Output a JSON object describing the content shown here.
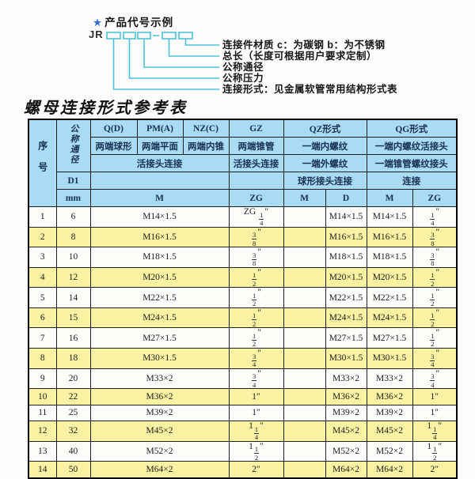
{
  "diagram": {
    "star": "★",
    "heading": "产品代号示例",
    "prefix": "JR",
    "labels": [
      "连接件材质  c：为碳钢  b：为不锈钢",
      "总长（长度可根据用户要求定制）",
      "公称通径",
      "公称压力",
      "连接形式：见金属软管常用结构形式表"
    ],
    "line_color": "#4cc2da",
    "star_color": "#2b6fc9"
  },
  "table": {
    "title": "螺母连接形式参考表",
    "colors": {
      "header_bg": "#a9dbf2",
      "row_alt_bg": "#f8f2a2",
      "header_text": "#16304e"
    },
    "header": {
      "seq": "序号",
      "dn": "公称通径",
      "d1": "D1",
      "mm": "mm",
      "types": [
        "Q(D)",
        "PM(A)",
        "NZ(C)",
        "GZ",
        "QZ形式",
        "QG形式"
      ],
      "row2": [
        "两端球形",
        "两端平面",
        "两端内锥",
        "两端锥管",
        "一端内螺纹",
        "一端内螺纹活接头"
      ],
      "row3": [
        "活接头连接",
        "活接头连接",
        "一端外螺纹",
        "一端锥管螺纹接头"
      ],
      "row4": [
        "球形接头连接",
        "连接"
      ],
      "row5": [
        "M",
        "ZG",
        "M",
        "D",
        "M",
        "ZG"
      ]
    },
    "rows": [
      [
        "1",
        "6",
        "M14×1.5",
        "ZG {1/4}″",
        "",
        "M14×1.5",
        "M14×1.5",
        "{1/4}″"
      ],
      [
        "2",
        "8",
        "M16×1.5",
        "{3/8}″",
        "",
        "M16×1.5",
        "M16×1.5",
        "{3/8}″"
      ],
      [
        "3",
        "10",
        "M18×1.5",
        "{3/8}″",
        "",
        "M18×1.5",
        "M18×1.5",
        "{3/8}″"
      ],
      [
        "4",
        "12",
        "M20×1.5",
        "{1/2}″",
        "",
        "M20×1.5",
        "M20×1.5",
        "{1/2}″"
      ],
      [
        "5",
        "14",
        "M22×1.5",
        "{1/2}″",
        "",
        "M22×1.5",
        "M22×1.5",
        "{1/2}″"
      ],
      [
        "6",
        "15",
        "M24×1.5",
        "{1/2}″",
        "",
        "M24×1.5",
        "M24×1.5",
        "{1/2}″"
      ],
      [
        "7",
        "16",
        "M27×1.5",
        "{1/2}″",
        "",
        "M27×1.5",
        "M27×1.5",
        "{1/2}″"
      ],
      [
        "8",
        "18",
        "M30×1.5",
        "{3/4}″",
        "",
        "M30×1.5",
        "M30×1.5",
        "{3/4}″"
      ],
      [
        "9",
        "20",
        "M33×2",
        "{3/4}″",
        "",
        "M33×2",
        "M33×2",
        "{3/4}″"
      ],
      [
        "10",
        "22",
        "M36×2",
        "1″",
        "",
        "M36×2",
        "M36×2",
        "1″"
      ],
      [
        "11",
        "25",
        "M39×2",
        "1″",
        "",
        "M39×2",
        "M39×2",
        "1″"
      ],
      [
        "12",
        "32",
        "M45×2",
        "1{1/4}″",
        "",
        "M45×2",
        "M45×2",
        "1{1/4}″"
      ],
      [
        "13",
        "40",
        "M52×2",
        "1{1/2}″",
        "",
        "M52×2",
        "M52×2",
        "1{1/2}″"
      ],
      [
        "14",
        "50",
        "M64×2",
        "2″",
        "",
        "M64×2",
        "M64×2",
        "2″"
      ]
    ]
  }
}
